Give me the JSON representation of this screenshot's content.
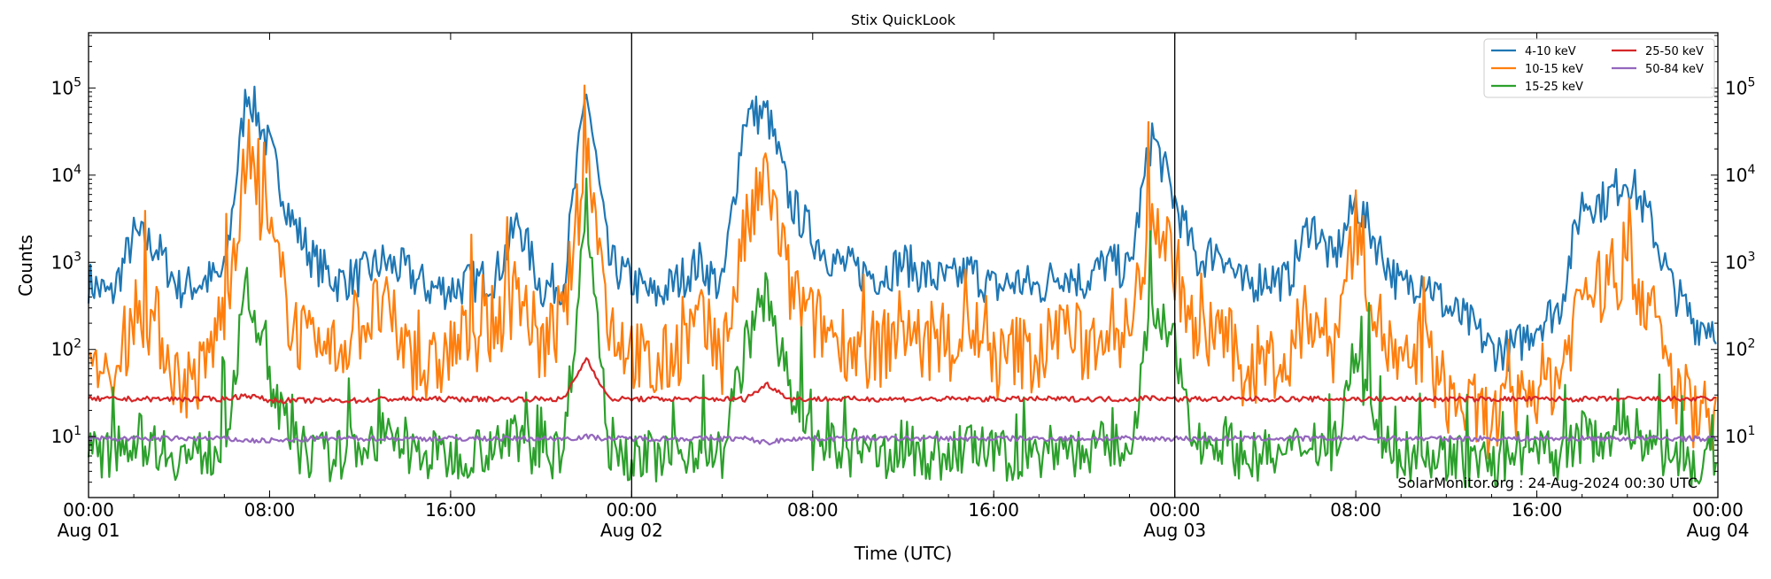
{
  "chart_data": {
    "type": "line",
    "title": "Stix QuickLook",
    "xlabel": "Time (UTC)",
    "ylabel": "Counts",
    "yscale": "log",
    "ylim": [
      2,
      430000
    ],
    "xlim_hours": [
      0,
      72
    ],
    "x_unit": "hours since Aug 01 00:00 UTC (hourly samples)",
    "x_ticks": [
      {
        "hour": 0,
        "label": "00:00",
        "sublabel": "Aug 01"
      },
      {
        "hour": 8,
        "label": "08:00",
        "sublabel": ""
      },
      {
        "hour": 16,
        "label": "16:00",
        "sublabel": ""
      },
      {
        "hour": 24,
        "label": "00:00",
        "sublabel": "Aug 02"
      },
      {
        "hour": 32,
        "label": "08:00",
        "sublabel": ""
      },
      {
        "hour": 40,
        "label": "16:00",
        "sublabel": ""
      },
      {
        "hour": 48,
        "label": "00:00",
        "sublabel": "Aug 03"
      },
      {
        "hour": 56,
        "label": "08:00",
        "sublabel": ""
      },
      {
        "hour": 64,
        "label": "16:00",
        "sublabel": ""
      },
      {
        "hour": 72,
        "label": "00:00",
        "sublabel": "Aug 04"
      }
    ],
    "y_ticks": [
      {
        "value": 10,
        "base": "10",
        "exp": "1"
      },
      {
        "value": 100,
        "base": "10",
        "exp": "2"
      },
      {
        "value": 1000,
        "base": "10",
        "exp": "3"
      },
      {
        "value": 10000,
        "base": "10",
        "exp": "4"
      },
      {
        "value": 100000,
        "base": "10",
        "exp": "5"
      }
    ],
    "day_boundaries_hours": [
      24,
      48
    ],
    "legend_placement": "top-right",
    "annotation": "SolarMonitor.org : 24-Aug-2024 00:30 UTC",
    "series": [
      {
        "name": "4-10 keV",
        "color": "#1f77b4",
        "values": [
          600,
          400,
          2000,
          1500,
          500,
          600,
          700,
          100000,
          20000,
          3000,
          1000,
          600,
          700,
          1000,
          800,
          500,
          500,
          600,
          700,
          3000,
          500,
          600,
          100000,
          1000,
          600,
          400,
          600,
          1000,
          500,
          50000,
          50000,
          5000,
          2000,
          1000,
          800,
          700,
          1000,
          700,
          600,
          800,
          500,
          600,
          500,
          800,
          600,
          1000,
          800,
          30000,
          5000,
          1000,
          1500,
          500,
          700,
          600,
          3000,
          1000,
          5000,
          1500,
          500,
          700,
          300,
          200,
          100,
          100,
          200,
          300,
          5000,
          5000,
          10000,
          3000,
          500,
          200
        ]
      },
      {
        "name": "10-15 keV",
        "color": "#ff7f0e",
        "values": [
          50,
          30,
          300,
          200,
          40,
          50,
          300,
          15000,
          2000,
          200,
          80,
          100,
          200,
          300,
          100,
          50,
          100,
          150,
          200,
          500,
          100,
          200,
          20000,
          200,
          100,
          50,
          100,
          200,
          80,
          2000,
          10000,
          500,
          200,
          150,
          100,
          100,
          200,
          100,
          100,
          200,
          60,
          100,
          80,
          200,
          100,
          200,
          150,
          4000,
          1000,
          100,
          200,
          50,
          80,
          60,
          300,
          100,
          3000,
          200,
          50,
          100,
          30,
          20,
          15,
          20,
          40,
          50,
          500,
          500,
          1000,
          300,
          40,
          20
        ]
      },
      {
        "name": "15-25 keV",
        "color": "#2ca02c",
        "values": [
          6,
          6,
          10,
          8,
          6,
          6,
          8,
          500,
          50,
          8,
          6,
          6,
          8,
          10,
          7,
          6,
          6,
          7,
          8,
          10,
          6,
          7,
          5000,
          8,
          6,
          6,
          6,
          8,
          6,
          100,
          500,
          30,
          8,
          7,
          6,
          6,
          8,
          6,
          6,
          8,
          6,
          6,
          6,
          8,
          6,
          8,
          7,
          300,
          100,
          8,
          10,
          6,
          6,
          6,
          10,
          7,
          100,
          8,
          6,
          6,
          6,
          5,
          5,
          5,
          6,
          6,
          10,
          10,
          15,
          8,
          6,
          5
        ]
      },
      {
        "name": "25-50 keV",
        "color": "#d62728",
        "values": [
          27,
          27,
          27,
          27,
          27,
          27,
          27,
          30,
          26,
          26,
          26,
          26,
          26,
          27,
          27,
          27,
          27,
          27,
          27,
          27,
          27,
          27,
          80,
          27,
          27,
          27,
          27,
          27,
          27,
          27,
          40,
          27,
          27,
          27,
          27,
          27,
          27,
          27,
          27,
          27,
          27,
          27,
          27,
          27,
          27,
          27,
          27,
          28,
          27,
          27,
          27,
          27,
          27,
          27,
          27,
          27,
          27,
          27,
          27,
          27,
          27,
          27,
          27,
          27,
          27,
          27,
          27,
          27,
          27,
          27,
          27,
          27
        ]
      },
      {
        "name": "50-84 keV",
        "color": "#9467bd",
        "values": [
          9.5,
          9.5,
          9.5,
          9.5,
          9.5,
          9.5,
          9.5,
          9,
          9,
          9,
          9.5,
          9.5,
          9.5,
          9.5,
          9.5,
          9.5,
          9.5,
          9.5,
          9.5,
          9.5,
          9.5,
          9.5,
          10,
          9.5,
          9.5,
          9.5,
          9.5,
          9.5,
          9.5,
          9.5,
          8.5,
          9.5,
          9.5,
          9.5,
          9.5,
          9.5,
          9.5,
          9.5,
          9.5,
          9.5,
          9.5,
          9.5,
          9.5,
          9.5,
          9.5,
          9.5,
          9.5,
          9.5,
          9.5,
          9.5,
          9.5,
          9.5,
          9.5,
          9.5,
          9.5,
          9.5,
          9.5,
          9.5,
          9.5,
          9.5,
          9.5,
          9.5,
          9.5,
          9.5,
          9.5,
          9.5,
          9.5,
          9.5,
          9.5,
          9.5,
          9.5,
          9.5
        ]
      }
    ]
  }
}
